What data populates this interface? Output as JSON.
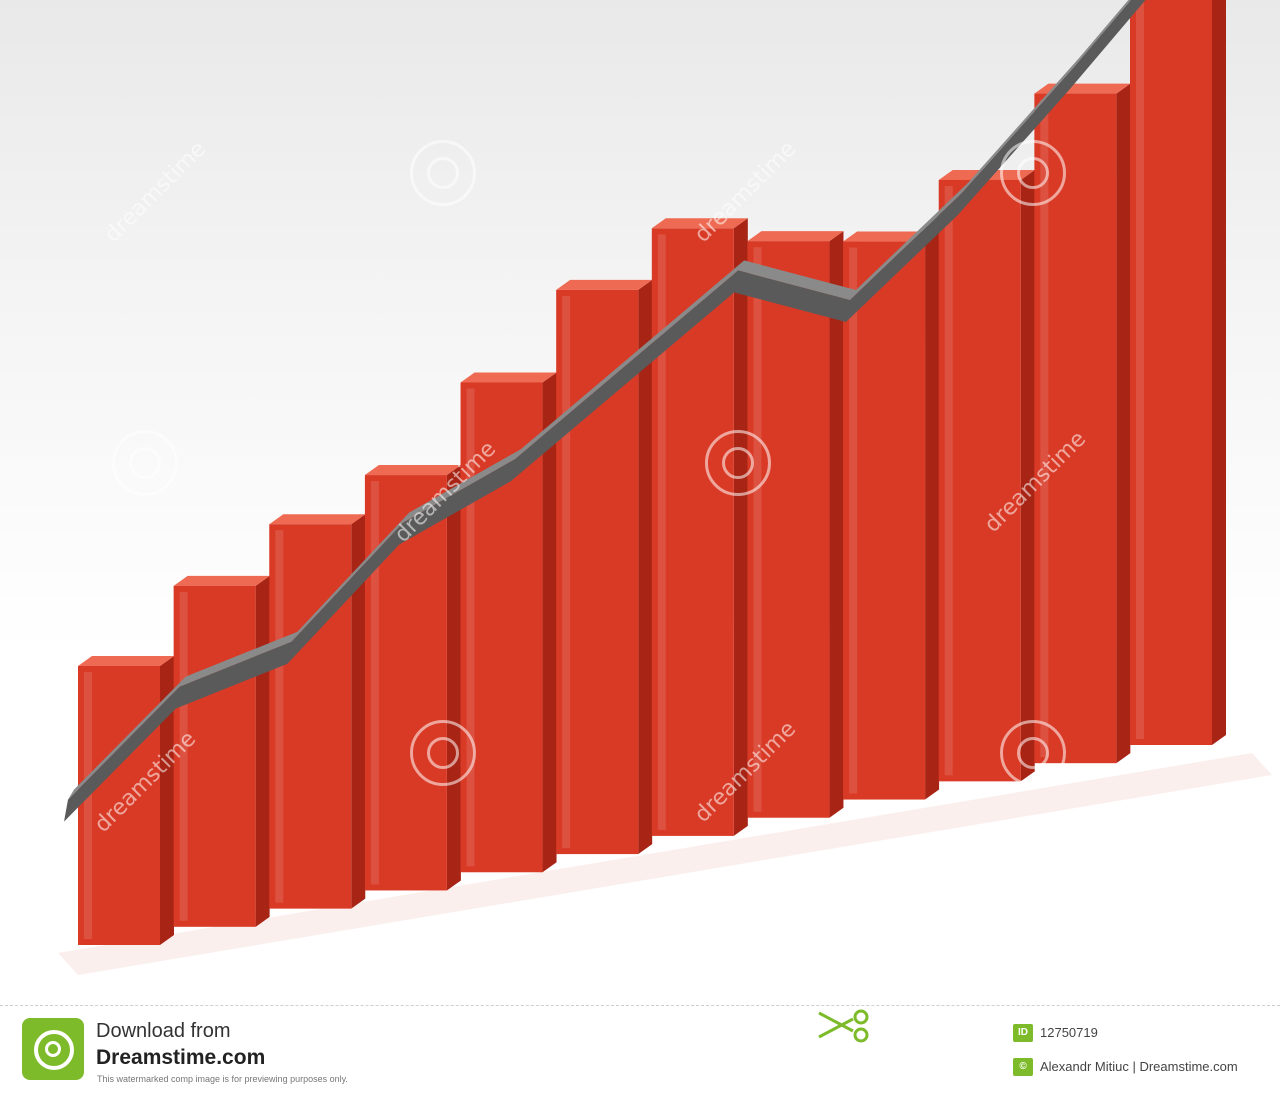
{
  "chart_data": {
    "type": "bar",
    "title": "",
    "xlabel": "",
    "ylabel": "",
    "grid": false,
    "legend": "none",
    "categories": [
      "",
      "",
      "",
      "",
      "",
      "",
      "",
      "",
      "",
      "",
      "",
      ""
    ],
    "values": [
      45,
      55,
      62,
      67,
      79,
      91,
      98,
      93,
      90,
      97,
      108,
      122
    ],
    "trend_line": [
      42,
      57,
      61,
      77,
      84,
      96,
      108,
      100,
      114,
      131,
      149
    ],
    "trend_arrow": true,
    "ylim": [
      0,
      130
    ],
    "colors": {
      "bar": "#d93a26",
      "bar_top": "#ef6a52",
      "bar_side": "#a82415",
      "arrow": "#8a8a8a",
      "arrow_dark": "#5a5a5a"
    }
  },
  "watermark": {
    "text": "dreamstime"
  },
  "footer": {
    "download_text": "Download from",
    "site_name": "Dreamstime.com",
    "notice": "This watermarked comp image is for previewing purposes only.",
    "id_badge": "ID",
    "image_id": "12750719",
    "copyright_badge": "©",
    "credit": "Alexandr Mitiuc | Dreamstime.com",
    "brand_color": "#7dbb2a"
  }
}
